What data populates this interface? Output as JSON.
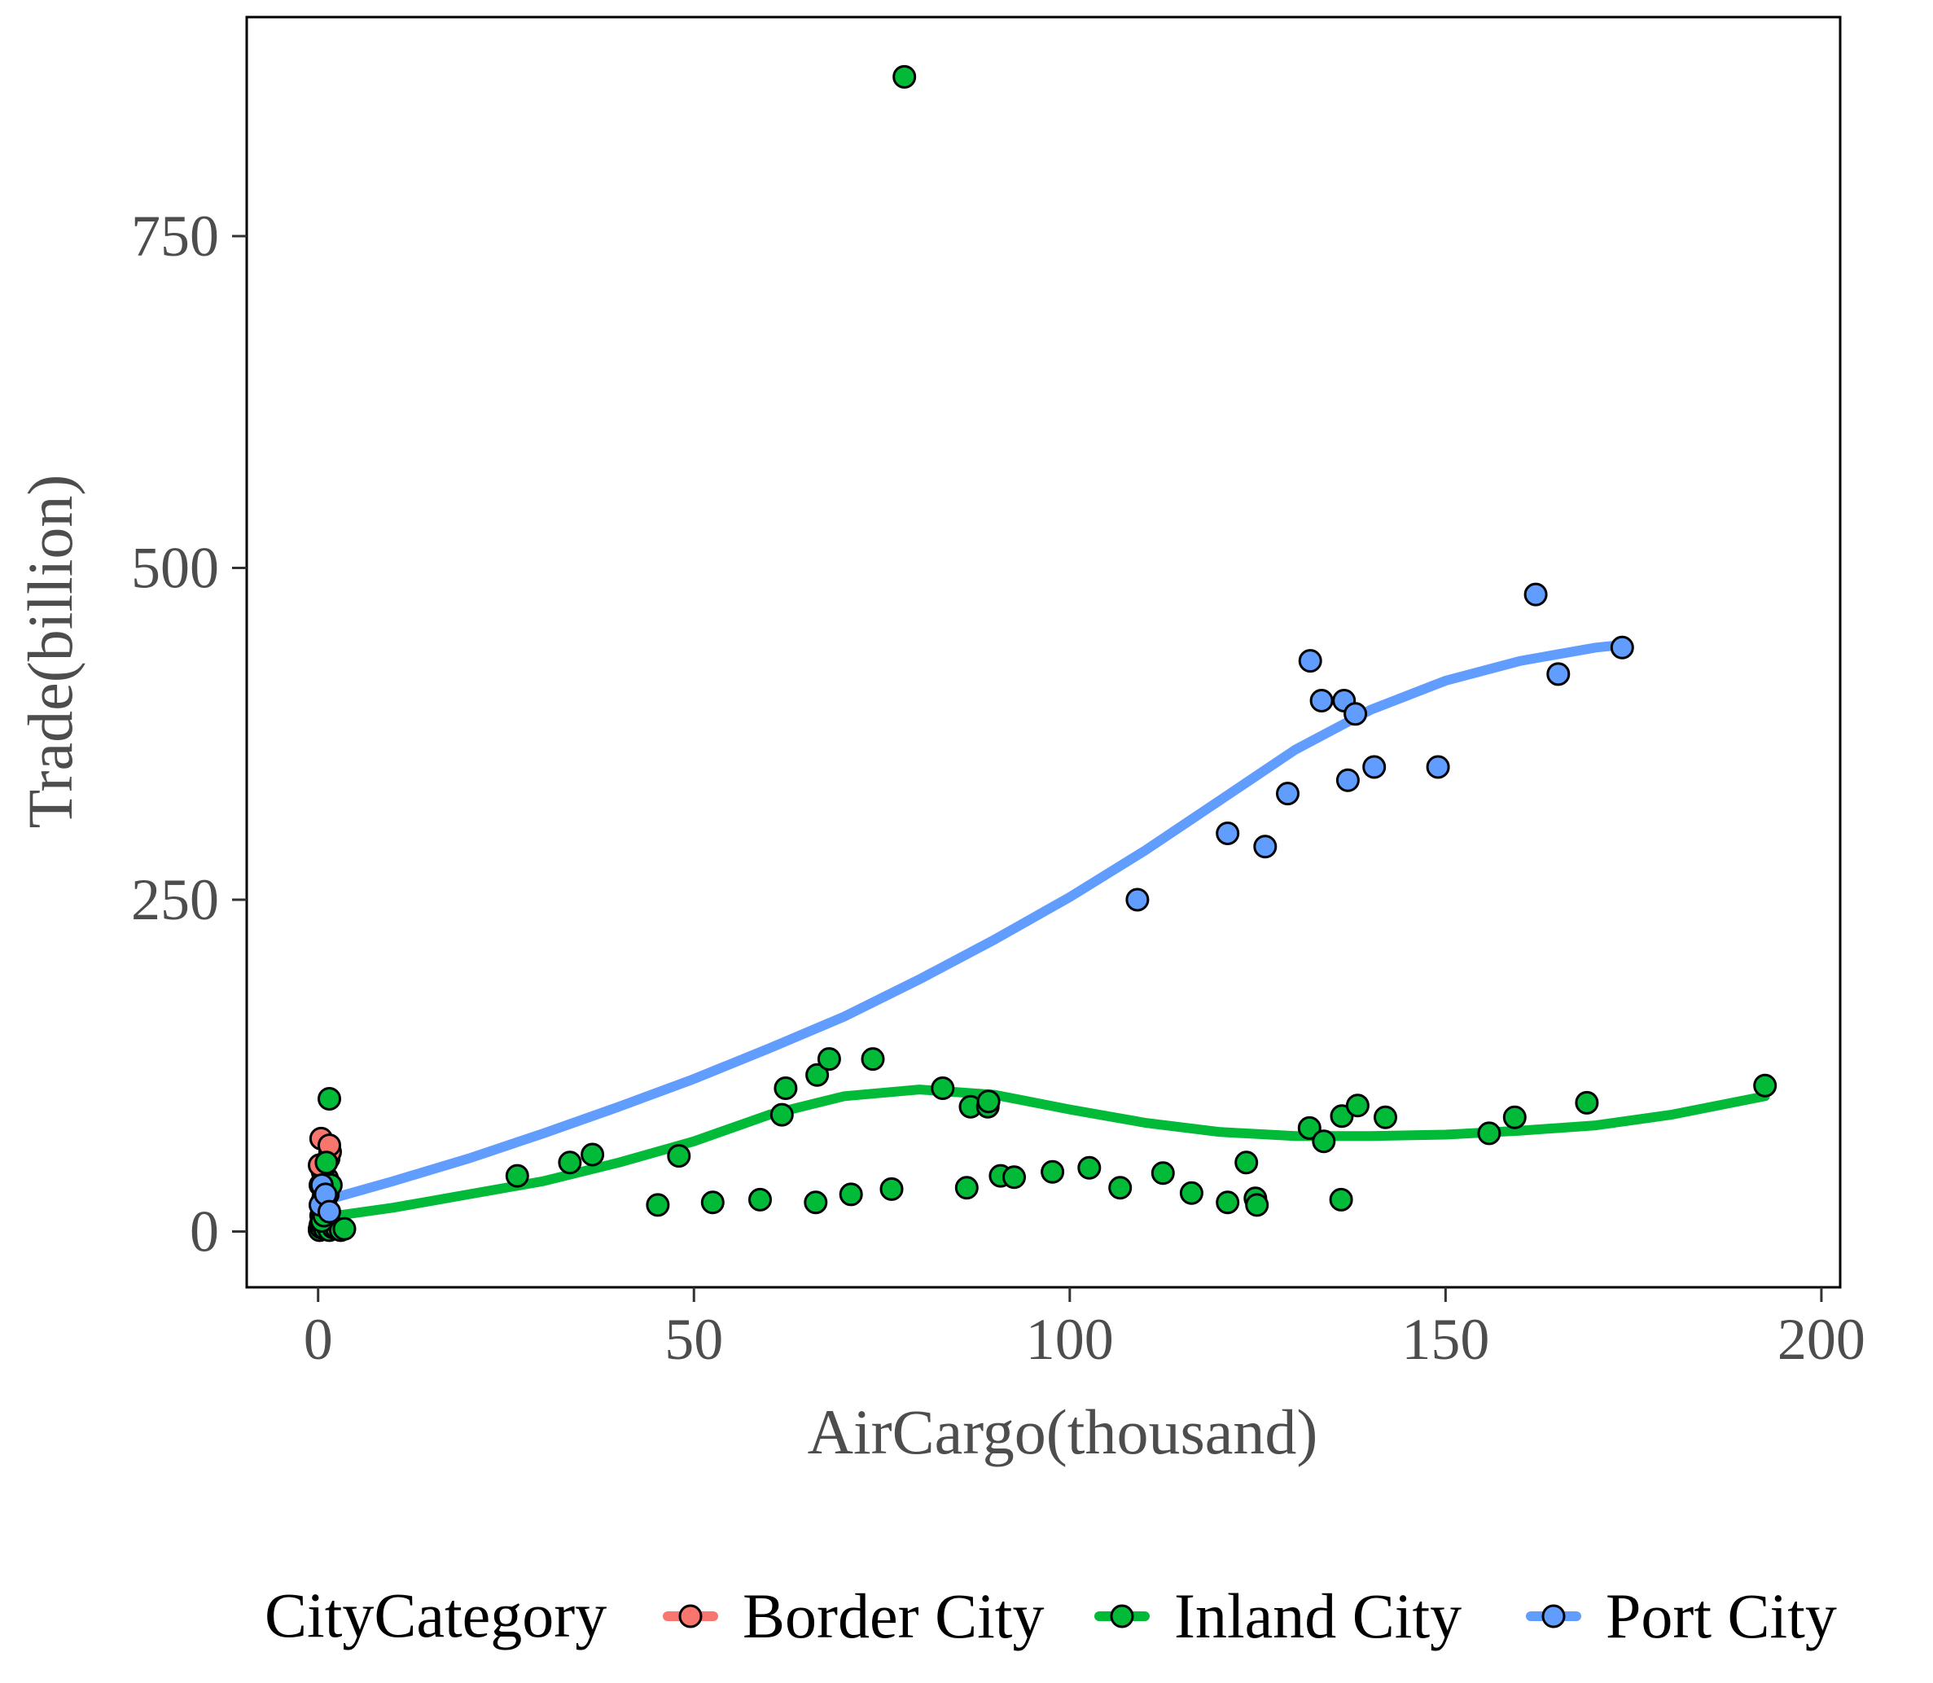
{
  "chart_data": {
    "type": "scatter",
    "title": "",
    "xlabel": "AirCargo(thousand)",
    "ylabel": "Trade(billion)",
    "xlim": [
      -9.5,
      202.5
    ],
    "ylim": [
      -42,
      915
    ],
    "xticks": [
      0,
      50,
      100,
      150,
      200
    ],
    "yticks": [
      0,
      250,
      500,
      750
    ],
    "grid": false,
    "legend": {
      "title": "CityCategory",
      "position": "bottom"
    },
    "series": [
      {
        "name": "Border City",
        "color": "#F8766D",
        "points": [
          [
            0.2,
            2
          ],
          [
            0.3,
            5
          ],
          [
            0.5,
            8
          ],
          [
            0.4,
            12
          ],
          [
            0.6,
            15
          ],
          [
            0.8,
            18
          ],
          [
            0.5,
            22
          ],
          [
            0.7,
            26
          ],
          [
            1.0,
            30
          ],
          [
            0.3,
            35
          ],
          [
            1.2,
            40
          ],
          [
            0.6,
            45
          ],
          [
            0.2,
            50
          ],
          [
            1.4,
            55
          ],
          [
            1.6,
            60
          ],
          [
            0.4,
            70
          ],
          [
            1.5,
            65
          ],
          [
            0.9,
            3
          ],
          [
            1.1,
            7
          ]
        ],
        "smooth": [
          [
            0,
            12
          ],
          [
            0.8,
            16
          ],
          [
            1.6,
            22
          ]
        ]
      },
      {
        "name": "Inland City",
        "color": "#00BA38",
        "points": [
          [
            0.2,
            1
          ],
          [
            0.4,
            3
          ],
          [
            0.6,
            5
          ],
          [
            0.9,
            2
          ],
          [
            1.2,
            4
          ],
          [
            1.5,
            1
          ],
          [
            2.0,
            3
          ],
          [
            2.5,
            2
          ],
          [
            3.0,
            1
          ],
          [
            3.5,
            2
          ],
          [
            0.5,
            8
          ],
          [
            0.8,
            12
          ],
          [
            1.0,
            20
          ],
          [
            1.3,
            28
          ],
          [
            1.7,
            35
          ],
          [
            1.1,
            52
          ],
          [
            1.5,
            100
          ],
          [
            26.5,
            42
          ],
          [
            33.5,
            52
          ],
          [
            36.5,
            58
          ],
          [
            45.2,
            20
          ],
          [
            48.0,
            57
          ],
          [
            52.5,
            22
          ],
          [
            58.8,
            24
          ],
          [
            61.7,
            88
          ],
          [
            62.2,
            108
          ],
          [
            66.2,
            22
          ],
          [
            66.4,
            118
          ],
          [
            68.0,
            130
          ],
          [
            70.9,
            28
          ],
          [
            73.8,
            130
          ],
          [
            76.3,
            32
          ],
          [
            78.0,
            870
          ],
          [
            83.1,
            108
          ],
          [
            86.3,
            33
          ],
          [
            86.8,
            94
          ],
          [
            89.1,
            94
          ],
          [
            89.2,
            98
          ],
          [
            90.8,
            42
          ],
          [
            92.6,
            41
          ],
          [
            97.7,
            45
          ],
          [
            102.6,
            48
          ],
          [
            106.7,
            33
          ],
          [
            112.4,
            44
          ],
          [
            116.2,
            29
          ],
          [
            121.0,
            22
          ],
          [
            123.5,
            52
          ],
          [
            124.7,
            25
          ],
          [
            124.9,
            20
          ],
          [
            131.9,
            78
          ],
          [
            133.8,
            68
          ],
          [
            136.1,
            24
          ],
          [
            136.2,
            87
          ],
          [
            138.3,
            95
          ],
          [
            142.0,
            86
          ],
          [
            155.8,
            74
          ],
          [
            159.2,
            86
          ],
          [
            168.8,
            97
          ],
          [
            192.5,
            110
          ]
        ],
        "smooth": [
          [
            0,
            10
          ],
          [
            10,
            18
          ],
          [
            20,
            28
          ],
          [
            30,
            38
          ],
          [
            40,
            52
          ],
          [
            50,
            68
          ],
          [
            60,
            88
          ],
          [
            70,
            102
          ],
          [
            80,
            107
          ],
          [
            90,
            103
          ],
          [
            100,
            92
          ],
          [
            110,
            82
          ],
          [
            120,
            75
          ],
          [
            130,
            72
          ],
          [
            140,
            72
          ],
          [
            150,
            73
          ],
          [
            160,
            76
          ],
          [
            170,
            80
          ],
          [
            180,
            88
          ],
          [
            192.5,
            102
          ]
        ]
      },
      {
        "name": "Port City",
        "color": "#619CFF",
        "points": [
          [
            0.3,
            20
          ],
          [
            0.5,
            35
          ],
          [
            1.0,
            28
          ],
          [
            1.5,
            15
          ],
          [
            109.0,
            250
          ],
          [
            121.0,
            300
          ],
          [
            126.0,
            290
          ],
          [
            129.0,
            330
          ],
          [
            132.0,
            430
          ],
          [
            133.5,
            400
          ],
          [
            136.5,
            400
          ],
          [
            137.0,
            340
          ],
          [
            138.0,
            390
          ],
          [
            140.5,
            350
          ],
          [
            149.0,
            350
          ],
          [
            162.0,
            480
          ],
          [
            165.0,
            420
          ],
          [
            173.5,
            440
          ]
        ],
        "smooth": [
          [
            0,
            22
          ],
          [
            10,
            38
          ],
          [
            20,
            55
          ],
          [
            30,
            74
          ],
          [
            40,
            94
          ],
          [
            50,
            115
          ],
          [
            60,
            138
          ],
          [
            70,
            162
          ],
          [
            80,
            190
          ],
          [
            90,
            220
          ],
          [
            100,
            252
          ],
          [
            110,
            287
          ],
          [
            120,
            325
          ],
          [
            130,
            363
          ],
          [
            140,
            393
          ],
          [
            150,
            415
          ],
          [
            160,
            430
          ],
          [
            170,
            440
          ],
          [
            173.5,
            442
          ]
        ]
      }
    ]
  }
}
